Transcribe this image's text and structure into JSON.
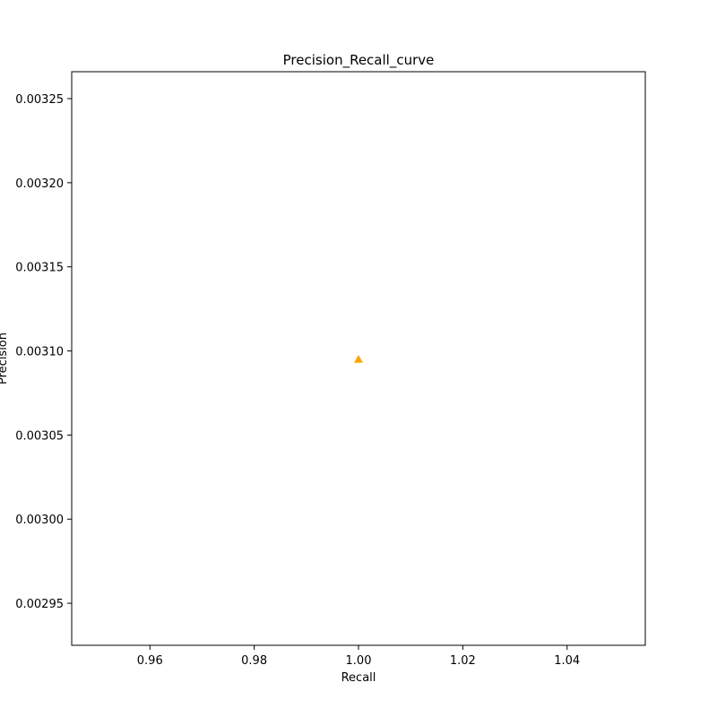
{
  "chart_data": {
    "type": "scatter",
    "title": "Precision_Recall_curve",
    "xlabel": "Recall",
    "ylabel": "Precision",
    "xlim": [
      0.945,
      1.055
    ],
    "ylim": [
      0.002925,
      0.003266
    ],
    "xticks": [
      0.96,
      0.98,
      1.0,
      1.02,
      1.04
    ],
    "xtick_labels": [
      "0.96",
      "0.98",
      "1.00",
      "1.02",
      "1.04"
    ],
    "yticks": [
      0.00295,
      0.003,
      0.00305,
      0.0031,
      0.00315,
      0.0032,
      0.00325
    ],
    "ytick_labels": [
      "0.00295",
      "0.00300",
      "0.00305",
      "0.00310",
      "0.00315",
      "0.00320",
      "0.00325"
    ],
    "grid": false,
    "series": [
      {
        "marker": "triangle-up",
        "color": "#ffa500",
        "points": [
          {
            "x": 1.0,
            "y": 0.003095
          }
        ]
      }
    ]
  }
}
